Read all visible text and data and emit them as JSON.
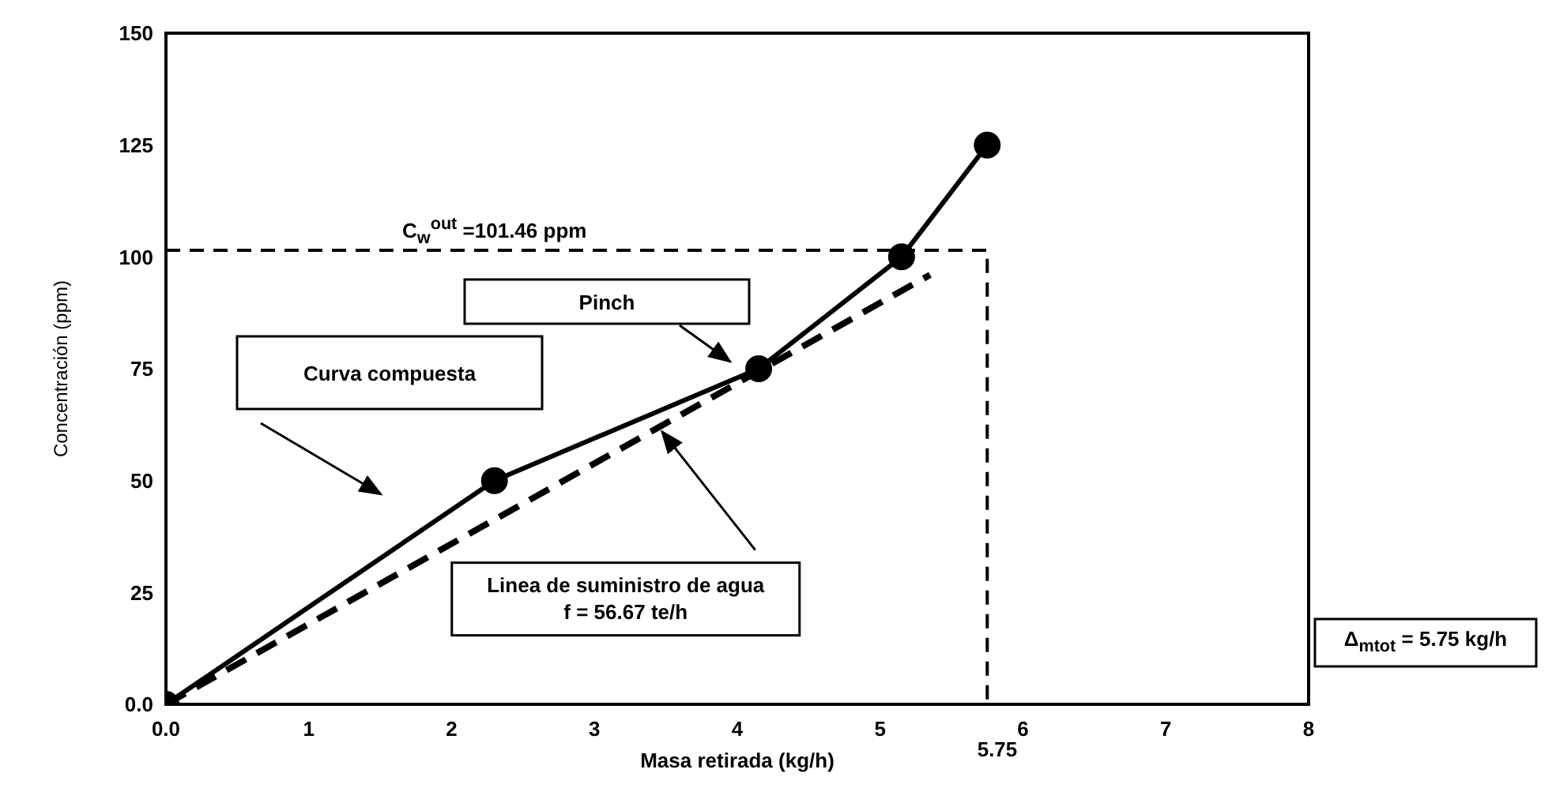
{
  "chart_data": {
    "type": "line",
    "xlabel": "Masa retirada (kg/h)",
    "ylabel": "Concentración (ppm)",
    "xlim": [
      0,
      8
    ],
    "ylim": [
      0,
      150
    ],
    "xticks": [
      {
        "value": 0,
        "label": "0.0"
      },
      1,
      2,
      3,
      4,
      5,
      6,
      7,
      8
    ],
    "yticks": [
      {
        "value": 0,
        "label": "0.0"
      },
      25,
      50,
      75,
      100,
      125,
      150
    ],
    "grid": false,
    "series": [
      {
        "color": "#000000",
        "marker": "circle",
        "line_style": "solid",
        "x": [
          0,
          2.3,
          4.15,
          5.15,
          5.75
        ],
        "values": [
          0,
          50,
          75,
          100,
          125
        ]
      },
      {
        "color": "#000000",
        "marker": "none",
        "line_style": "dashed",
        "x": [
          0,
          5.35
        ],
        "values": [
          0,
          96
        ]
      },
      {
        "color": "#000000",
        "marker": "none",
        "line_style": "dashed",
        "x": [
          0,
          5.75,
          5.75
        ],
        "values": [
          101.46,
          101.46,
          0
        ]
      }
    ],
    "annotations": [
      {
        "text": "C$_{w}$$^{out}$ =101.46 ppm",
        "x": 2.3,
        "y": 101.46
      },
      "Pinch",
      "Curva compuesta",
      {
        "text": "Linea de suministro de agua\nf = 56.67 te/h",
        "x": 3.44,
        "y": 62
      },
      "Δ$_{mtot}$ = 5.75 kg/h",
      "5.75"
    ]
  }
}
